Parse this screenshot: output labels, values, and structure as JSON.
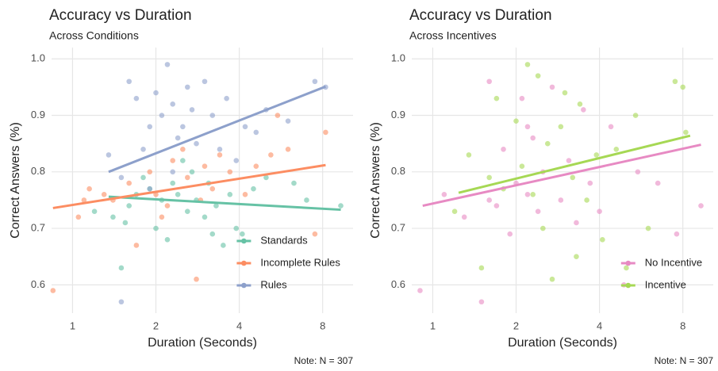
{
  "chart_data": [
    {
      "type": "scatter",
      "title": "Accuracy vs Duration",
      "subtitle": "Across Conditions",
      "x_label": "Duration (Seconds)",
      "y_label": "Correct Answers (%)",
      "note": "Note: N = 307",
      "xscale": "log",
      "xlim": [
        0.84,
        10.3
      ],
      "xticks": [
        1,
        2,
        4,
        8
      ],
      "ylim": [
        0.55,
        1.02
      ],
      "yticks": [
        0.6,
        0.7,
        0.8,
        0.9,
        {
          "value": 1,
          "label": "1.0"
        }
      ],
      "grid": true,
      "legend": "bottom-right",
      "series": [
        {
          "name": "Standards",
          "color": "#66c2a5",
          "x": [
            1.2,
            1.4,
            1.5,
            1.6,
            1.7,
            1.8,
            1.9,
            2.0,
            2.1,
            2.2,
            2.3,
            2.4,
            2.6,
            2.7,
            2.8,
            3.0,
            3.1,
            3.3,
            3.5,
            3.7,
            3.9,
            4.1,
            4.5,
            5.0,
            6.3,
            7.0,
            9.3,
            1.55,
            2.5,
            3.2
          ],
          "y": [
            0.73,
            0.72,
            0.63,
            0.74,
            0.76,
            0.79,
            0.77,
            0.7,
            0.75,
            0.68,
            0.78,
            0.76,
            0.73,
            0.8,
            0.75,
            0.72,
            0.78,
            0.74,
            0.67,
            0.76,
            0.7,
            0.69,
            0.77,
            0.79,
            0.78,
            0.75,
            0.74,
            0.71,
            0.82,
            0.69
          ],
          "trend": {
            "x": [
              1.35,
              9.3
            ],
            "y": [
              0.756,
              0.733
            ]
          }
        },
        {
          "name": "Incomplete Rules",
          "color": "#fc8d62",
          "x": [
            0.85,
            1.05,
            1.1,
            1.15,
            1.3,
            1.4,
            1.6,
            1.7,
            1.9,
            2.0,
            2.2,
            2.3,
            2.5,
            2.6,
            2.8,
            3.0,
            3.2,
            3.4,
            3.7,
            4.2,
            4.6,
            5.2,
            5.5,
            6.0,
            7.5,
            8.2,
            2.1,
            2.9
          ],
          "y": [
            0.59,
            0.72,
            0.75,
            0.77,
            0.76,
            0.75,
            0.78,
            0.67,
            0.8,
            0.76,
            0.74,
            0.82,
            0.84,
            0.79,
            0.61,
            0.81,
            0.77,
            0.83,
            0.8,
            0.76,
            0.81,
            0.83,
            0.9,
            0.84,
            0.69,
            0.87,
            0.72,
            0.75
          ],
          "trend": {
            "x": [
              0.85,
              8.2
            ],
            "y": [
              0.736,
              0.812
            ]
          }
        },
        {
          "name": "Rules",
          "color": "#8da0cb",
          "x": [
            1.35,
            1.5,
            1.5,
            1.6,
            1.7,
            1.8,
            1.9,
            2.0,
            2.1,
            2.2,
            2.3,
            2.4,
            2.5,
            2.6,
            2.7,
            2.8,
            3.0,
            3.2,
            3.4,
            3.6,
            3.9,
            4.2,
            4.6,
            5.0,
            6.0,
            7.5,
            8.2,
            2.3,
            1.9
          ],
          "y": [
            0.83,
            0.79,
            0.57,
            0.96,
            0.93,
            0.84,
            0.88,
            0.94,
            0.9,
            0.99,
            0.92,
            0.86,
            0.88,
            0.95,
            0.91,
            0.85,
            0.96,
            0.9,
            0.84,
            0.93,
            0.82,
            0.88,
            0.87,
            0.91,
            0.89,
            0.96,
            0.95,
            0.8,
            0.77
          ],
          "trend": {
            "x": [
              1.35,
              8.2
            ],
            "y": [
              0.8,
              0.951
            ]
          }
        }
      ]
    },
    {
      "type": "scatter",
      "title": "Accuracy vs Duration",
      "subtitle": "Across Incentives",
      "x_label": "Duration (Seconds)",
      "y_label": "Correct Answers (%)",
      "note": "Note: N = 307",
      "xscale": "log",
      "xlim": [
        0.84,
        10.3
      ],
      "xticks": [
        1,
        2,
        4,
        8
      ],
      "ylim": [
        0.55,
        1.02
      ],
      "yticks": [
        0.6,
        0.7,
        0.8,
        0.9,
        {
          "value": 1,
          "label": "1.0"
        }
      ],
      "grid": true,
      "legend": "bottom-right",
      "series": [
        {
          "name": "No Incentive",
          "color": "#e78ac3",
          "x": [
            0.9,
            1.1,
            1.3,
            1.5,
            1.6,
            1.7,
            1.8,
            1.9,
            2.0,
            2.1,
            2.2,
            2.3,
            2.4,
            2.5,
            2.7,
            2.9,
            3.1,
            3.3,
            3.5,
            3.7,
            4.0,
            4.4,
            4.9,
            5.5,
            6.5,
            7.6,
            9.3,
            1.6,
            2.2
          ],
          "y": [
            0.59,
            0.76,
            0.72,
            0.57,
            0.96,
            0.74,
            0.84,
            0.69,
            0.78,
            0.93,
            0.76,
            0.86,
            0.73,
            0.8,
            0.95,
            0.75,
            0.82,
            0.71,
            0.91,
            0.78,
            0.73,
            0.88,
            0.6,
            0.8,
            0.78,
            0.69,
            0.74,
            0.75,
            0.88
          ],
          "trend": {
            "x": [
              0.92,
              9.3
            ],
            "y": [
              0.74,
              0.848
            ]
          }
        },
        {
          "name": "Incentive",
          "color": "#a6d854",
          "x": [
            1.2,
            1.35,
            1.5,
            1.6,
            1.7,
            1.8,
            2.0,
            2.1,
            2.2,
            2.3,
            2.4,
            2.5,
            2.6,
            2.7,
            2.9,
            3.0,
            3.2,
            3.4,
            3.6,
            3.9,
            4.1,
            4.6,
            5.0,
            5.4,
            6.0,
            7.5,
            8.0,
            8.2,
            3.3
          ],
          "y": [
            0.73,
            0.83,
            0.63,
            0.79,
            0.93,
            0.77,
            0.89,
            0.81,
            0.99,
            0.76,
            0.97,
            0.7,
            0.85,
            0.61,
            0.88,
            0.94,
            0.79,
            0.92,
            0.75,
            0.83,
            0.68,
            0.84,
            0.63,
            0.9,
            0.7,
            0.96,
            0.95,
            0.87,
            0.65
          ],
          "trend": {
            "x": [
              1.24,
              8.5
            ],
            "y": [
              0.763,
              0.864
            ]
          }
        }
      ]
    }
  ]
}
